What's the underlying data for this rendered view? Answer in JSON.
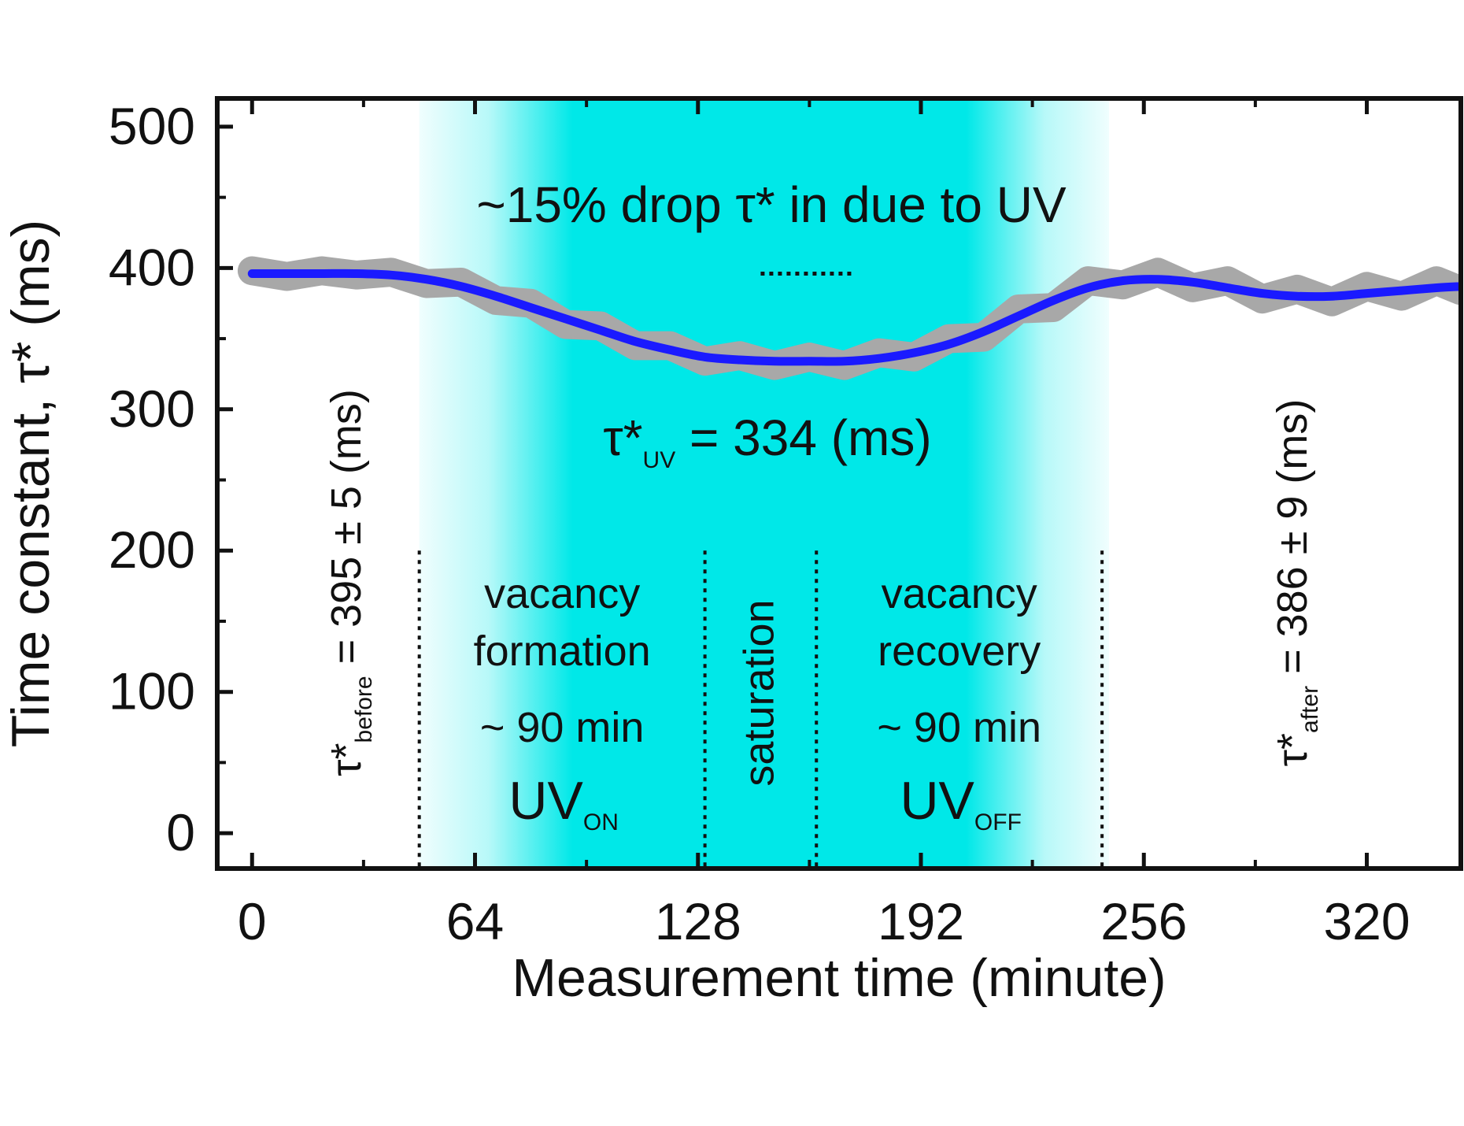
{
  "chart_data": {
    "type": "line",
    "title": "",
    "xlabel": "Measurement time (minute)",
    "ylabel": "Time constant, τ* (ms)",
    "xlim": [
      -10,
      347
    ],
    "ylim": [
      -25,
      520
    ],
    "xticks": [
      0,
      64,
      128,
      192,
      256,
      320
    ],
    "yticks": [
      0,
      100,
      200,
      300,
      400,
      500
    ],
    "grid": false,
    "colors": {
      "fit_line": "#1a1aff",
      "raw_data": "#a8a8a8",
      "uv_region": "#00e8e8",
      "axes": "#111111"
    },
    "series": [
      {
        "role": "fit",
        "x": [
          0,
          10,
          20,
          30,
          40,
          50,
          60,
          70,
          80,
          90,
          100,
          110,
          120,
          130,
          140,
          150,
          160,
          170,
          180,
          190,
          200,
          210,
          220,
          230,
          240,
          250,
          260,
          270,
          280,
          290,
          300,
          310,
          320,
          330,
          340,
          347
        ],
        "y": [
          396,
          396,
          396,
          396,
          395,
          392,
          387,
          380,
          372,
          364,
          356,
          348,
          342,
          337,
          335,
          334,
          334,
          334,
          336,
          340,
          346,
          355,
          366,
          377,
          386,
          391,
          392,
          390,
          386,
          382,
          380,
          380,
          382,
          384,
          386,
          387
        ]
      },
      {
        "role": "raw",
        "x": [
          0,
          10,
          20,
          30,
          40,
          50,
          60,
          70,
          80,
          90,
          100,
          110,
          120,
          130,
          140,
          150,
          160,
          170,
          180,
          190,
          200,
          210,
          220,
          230,
          240,
          250,
          260,
          270,
          280,
          290,
          300,
          310,
          320,
          330,
          340,
          347
        ],
        "y": [
          398,
          394,
          398,
          395,
          397,
          389,
          390,
          377,
          375,
          360,
          359,
          345,
          345,
          334,
          338,
          331,
          337,
          331,
          340,
          337,
          350,
          351,
          371,
          372,
          391,
          388,
          397,
          386,
          391,
          378,
          385,
          376,
          387,
          380,
          391,
          384
        ],
        "spread": 8
      }
    ],
    "uv_region": {
      "x_start": 48,
      "x_full_start": 92,
      "x_full_end": 205,
      "x_end": 246
    },
    "phase_boundaries": [
      48,
      130,
      162,
      244
    ],
    "mean_marker": {
      "x_start": 146,
      "x_end": 172,
      "y": 396
    },
    "annotations": {
      "headline": "~15% drop τ* in due to UV",
      "uv_value": {
        "main": "τ*",
        "sub": "UV",
        "rest": " = 334 (ms)"
      },
      "before_value": {
        "main": "τ*",
        "sub": "before",
        "rest": " = 395 ± 5 (ms)"
      },
      "after_value": {
        "main": "τ*",
        "sub": "after",
        "rest": " = 386 ± 9 (ms)"
      },
      "phase_formation": {
        "line1": "vacancy",
        "line2": "formation",
        "duration": "~ 90 min",
        "state_main": "UV",
        "state_sub": "ON"
      },
      "phase_saturation": {
        "label": "saturation"
      },
      "phase_recovery": {
        "line1": "vacancy",
        "line2": "recovery",
        "duration": "~ 90 min",
        "state_main": "UV",
        "state_sub": "OFF"
      }
    }
  }
}
